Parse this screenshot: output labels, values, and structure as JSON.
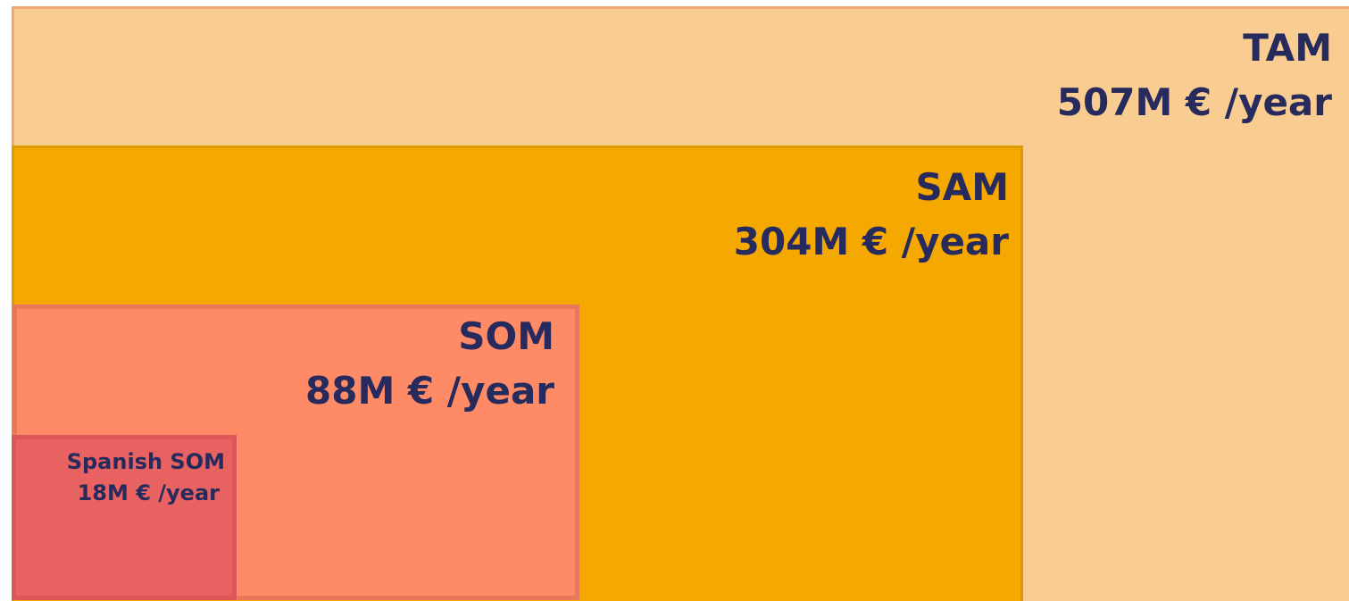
{
  "nodes": [
    {
      "label": "TAM",
      "value": "507M € /year"
    },
    {
      "label": "SAM",
      "value": "304M € /year"
    },
    {
      "label": "SOM",
      "value": "88M € /year"
    },
    {
      "label": "Spanish SOM",
      "value": "18M € /year"
    }
  ]
}
